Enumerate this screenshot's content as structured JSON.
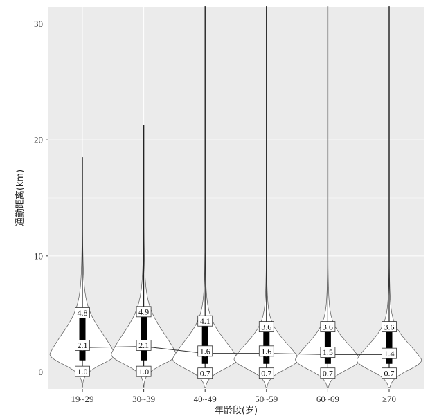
{
  "chart_data": {
    "type": "violin",
    "xlabel": "年龄段(岁)",
    "ylabel": "通勤距离(km)",
    "ylim": [
      -1.5,
      31.5
    ],
    "yticks": [
      0,
      10,
      20,
      30
    ],
    "grid": true,
    "categories": [
      "19~29",
      "30~39",
      "40~49",
      "50~59",
      "60~69",
      "≥70"
    ],
    "series": [
      {
        "category": "19~29",
        "max": 18.5,
        "q3": 4.8,
        "median": 2.1,
        "q1": 1.0,
        "mean": 2.1
      },
      {
        "category": "30~39",
        "max": 21.3,
        "q3": 4.9,
        "median": 2.1,
        "q1": 1.0,
        "mean": 2.2
      },
      {
        "category": "40~49",
        "max": 31.5,
        "q3": 4.1,
        "median": 1.6,
        "q1": 0.7,
        "mean": 1.6
      },
      {
        "category": "50~59",
        "max": 31.5,
        "q3": 3.6,
        "median": 1.6,
        "q1": 0.7,
        "mean": 1.6
      },
      {
        "category": "60~69",
        "max": 31.5,
        "q3": 3.6,
        "median": 1.5,
        "q1": 0.7,
        "mean": 1.5
      },
      {
        "category": "≥70",
        "max": 31.5,
        "q3": 3.6,
        "median": 1.4,
        "q1": 0.7,
        "mean": 1.5
      }
    ],
    "labels": [
      {
        "q3": "4.8",
        "median": "2.1",
        "q1": "1.0"
      },
      {
        "q3": "4.9",
        "median": "2.1",
        "q1": "1.0"
      },
      {
        "q3": "4.1",
        "median": "1.6",
        "q1": "0.7"
      },
      {
        "q3": "3.6",
        "median": "1.6",
        "q1": "0.7"
      },
      {
        "q3": "3.6",
        "median": "1.5",
        "q1": "0.7"
      },
      {
        "q3": "3.6",
        "median": "1.4",
        "q1": "0.7"
      }
    ],
    "colors": {
      "panel": "#ebebeb",
      "grid": "#ffffff",
      "violin_fill": "#ffffff",
      "box": "#000000",
      "mean_point": "#ffffff",
      "line": "#333333"
    }
  }
}
